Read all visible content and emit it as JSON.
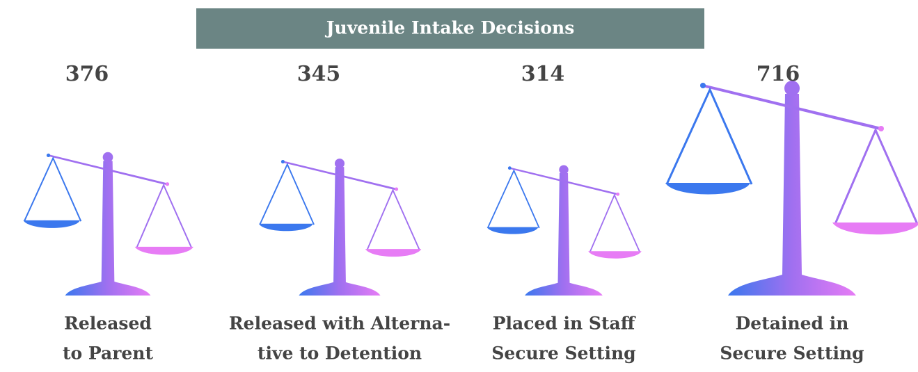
{
  "chart_data": {
    "type": "pictograph",
    "title": "Juvenile Intake Decisions",
    "categories": [
      [
        "Released",
        "to Parent"
      ],
      [
        "Released with Alterna-",
        "tive to Detention"
      ],
      [
        "Placed in Staff",
        "Secure Setting"
      ],
      [
        "Detained in",
        "Secure Setting"
      ]
    ],
    "values": [
      376,
      345,
      314,
      716
    ],
    "title_color": "#6b8584",
    "colors": [
      "#3b78ee",
      "#a070f0",
      "#e77cf5"
    ]
  }
}
